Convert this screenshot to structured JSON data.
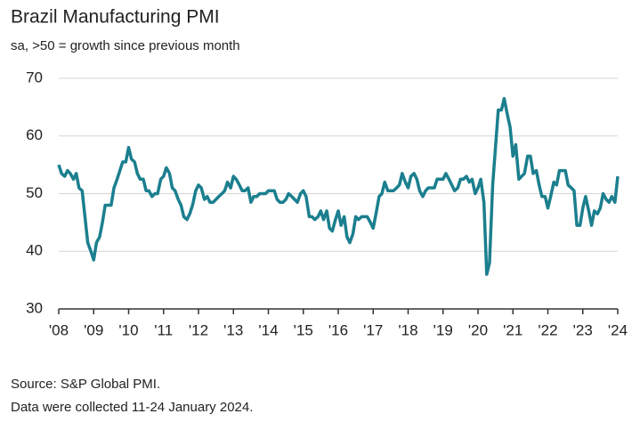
{
  "chart_data": {
    "type": "line",
    "title": "Brazil Manufacturing PMI",
    "subtitle": "sa, >50 = growth since previous month",
    "notes": [
      "Source: S&P Global PMI.",
      "Data were collected 11-24 January 2024."
    ],
    "xlim": [
      2008,
      2024
    ],
    "ylim": [
      30,
      70
    ],
    "xticks": [
      {
        "value": 2008,
        "label": "'08"
      },
      {
        "value": 2009,
        "label": "'09"
      },
      {
        "value": 2010,
        "label": "'10"
      },
      {
        "value": 2011,
        "label": "'11"
      },
      {
        "value": 2012,
        "label": "'12"
      },
      {
        "value": 2013,
        "label": "'13"
      },
      {
        "value": 2014,
        "label": "'14"
      },
      {
        "value": 2015,
        "label": "'15"
      },
      {
        "value": 2016,
        "label": "'16"
      },
      {
        "value": 2017,
        "label": "'17"
      },
      {
        "value": 2018,
        "label": "'18"
      },
      {
        "value": 2019,
        "label": "'19"
      },
      {
        "value": 2020,
        "label": "'20"
      },
      {
        "value": 2021,
        "label": "'21"
      },
      {
        "value": 2022,
        "label": "'22"
      },
      {
        "value": 2023,
        "label": "'23"
      },
      {
        "value": 2024,
        "label": "'24"
      }
    ],
    "yticks": [
      30,
      40,
      50,
      60,
      70
    ],
    "grid": true,
    "x": [
      2008,
      2008.08,
      2008.17,
      2008.25,
      2008.33,
      2008.42,
      2008.5,
      2008.58,
      2008.67,
      2008.75,
      2008.83,
      2008.92,
      2009,
      2009.08,
      2009.17,
      2009.25,
      2009.33,
      2009.42,
      2009.5,
      2009.58,
      2009.67,
      2009.75,
      2009.83,
      2009.92,
      2010,
      2010.08,
      2010.17,
      2010.25,
      2010.33,
      2010.42,
      2010.5,
      2010.58,
      2010.67,
      2010.75,
      2010.83,
      2010.92,
      2011,
      2011.08,
      2011.17,
      2011.25,
      2011.33,
      2011.42,
      2011.5,
      2011.58,
      2011.67,
      2011.75,
      2011.83,
      2011.92,
      2012,
      2012.08,
      2012.17,
      2012.25,
      2012.33,
      2012.42,
      2012.5,
      2012.58,
      2012.67,
      2012.75,
      2012.83,
      2012.92,
      2013,
      2013.08,
      2013.17,
      2013.25,
      2013.33,
      2013.42,
      2013.5,
      2013.58,
      2013.67,
      2013.75,
      2013.83,
      2013.92,
      2014,
      2014.08,
      2014.17,
      2014.25,
      2014.33,
      2014.42,
      2014.5,
      2014.58,
      2014.67,
      2014.75,
      2014.83,
      2014.92,
      2015,
      2015.08,
      2015.17,
      2015.25,
      2015.33,
      2015.42,
      2015.5,
      2015.58,
      2015.67,
      2015.75,
      2015.83,
      2015.92,
      2016,
      2016.08,
      2016.17,
      2016.25,
      2016.33,
      2016.42,
      2016.5,
      2016.58,
      2016.67,
      2016.75,
      2016.83,
      2016.92,
      2017,
      2017.08,
      2017.17,
      2017.25,
      2017.33,
      2017.42,
      2017.5,
      2017.58,
      2017.67,
      2017.75,
      2017.83,
      2017.92,
      2018,
      2018.08,
      2018.17,
      2018.25,
      2018.33,
      2018.42,
      2018.5,
      2018.58,
      2018.67,
      2018.75,
      2018.83,
      2018.92,
      2019,
      2019.08,
      2019.17,
      2019.25,
      2019.33,
      2019.42,
      2019.5,
      2019.58,
      2019.67,
      2019.75,
      2019.83,
      2019.92,
      2020,
      2020.08,
      2020.17,
      2020.25,
      2020.33,
      2020.42,
      2020.5,
      2020.58,
      2020.67,
      2020.75,
      2020.83,
      2020.92,
      2021,
      2021.08,
      2021.17,
      2021.25,
      2021.33,
      2021.42,
      2021.5,
      2021.58,
      2021.67,
      2021.75,
      2021.83,
      2021.92,
      2022,
      2022.08,
      2022.17,
      2022.25,
      2022.33,
      2022.42,
      2022.5,
      2022.58,
      2022.67,
      2022.75,
      2022.83,
      2022.92,
      2023,
      2023.08,
      2023.17,
      2023.25,
      2023.33,
      2023.42,
      2023.5,
      2023.58,
      2023.67,
      2023.75,
      2023.83,
      2023.92,
      2024
    ],
    "series": [
      {
        "color": "#1b7f8e",
        "values": [
          55,
          53.5,
          53,
          54,
          53.5,
          52.5,
          53.5,
          51,
          50.5,
          46,
          41.5,
          40,
          38.5,
          41.5,
          42.5,
          45,
          48,
          48,
          48,
          51,
          52.5,
          54,
          55.5,
          55.5,
          58,
          56,
          55.5,
          53.5,
          52.5,
          52.5,
          50.5,
          50.5,
          49.5,
          50,
          50,
          52.5,
          53,
          54.5,
          53.5,
          51,
          50.5,
          49,
          48,
          46,
          45.5,
          46.5,
          48,
          50.5,
          51.5,
          51,
          49,
          49.5,
          48.5,
          48.5,
          49,
          49.5,
          50,
          50.5,
          52,
          51,
          53,
          52.5,
          51.5,
          50.5,
          50.5,
          51,
          48.5,
          49.5,
          49.5,
          50,
          50,
          50,
          50.5,
          50.5,
          50.5,
          49,
          48.5,
          48.5,
          49,
          50,
          49.5,
          49,
          48.5,
          50,
          50.5,
          49.5,
          46,
          46,
          45.5,
          46,
          47,
          45.5,
          47,
          44,
          43.5,
          45.5,
          47,
          44.5,
          46,
          42.5,
          41.5,
          43,
          46,
          45.5,
          46,
          46,
          46,
          45,
          44,
          46.5,
          49.5,
          50,
          52,
          50.5,
          50.5,
          50.5,
          51,
          51.5,
          53.5,
          52,
          51,
          53,
          53.5,
          52.5,
          50.5,
          49.5,
          50.5,
          51,
          51,
          51,
          52.5,
          52.5,
          52.5,
          53.5,
          52.5,
          51.5,
          50.5,
          51,
          52.5,
          52.5,
          53,
          52,
          52.5,
          50,
          51,
          52.5,
          48.5,
          36,
          38,
          51.5,
          58,
          64.5,
          64.5,
          66.5,
          64,
          61.5,
          56.5,
          58.5,
          52.5,
          53,
          53.5,
          56.5,
          56.5,
          53.5,
          54,
          51.5,
          49.5,
          49.5,
          47.5,
          49.5,
          52,
          51.5,
          54,
          54,
          54,
          51.5,
          51,
          50.5,
          44.5,
          44.5,
          47.5,
          49.5,
          47,
          44.5,
          47,
          46.5,
          47.5,
          50,
          49,
          48.5,
          49.5,
          48.5,
          53
        ]
      }
    ]
  }
}
